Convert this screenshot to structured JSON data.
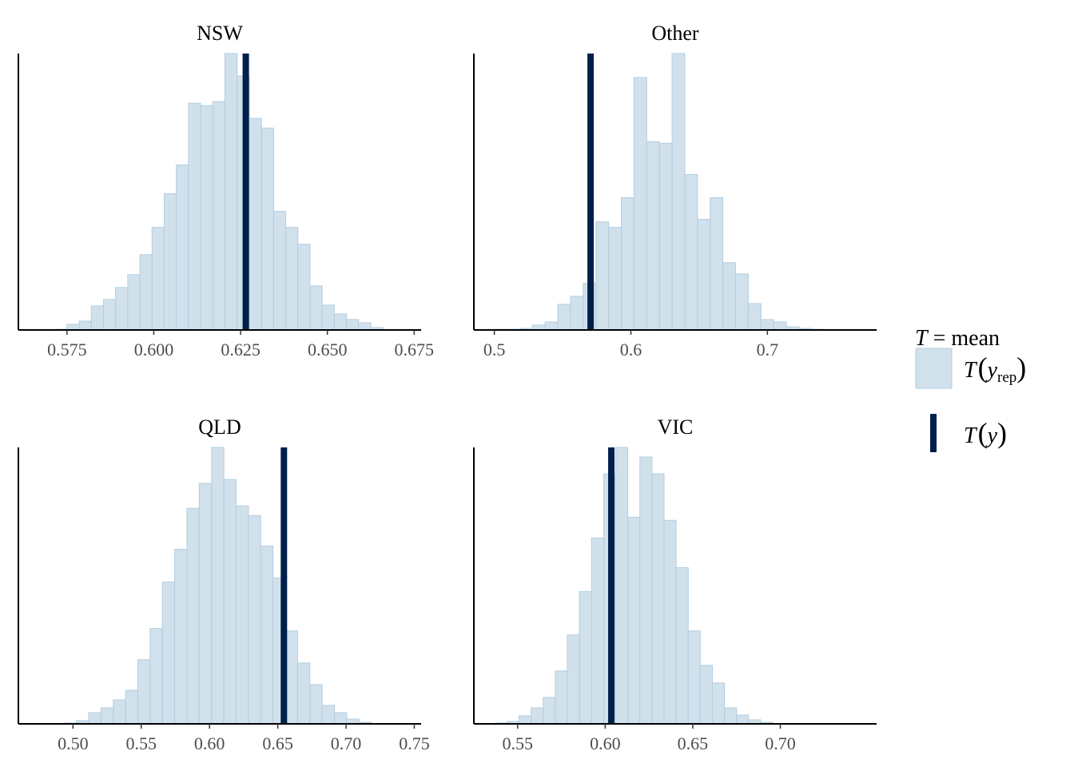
{
  "colors": {
    "bar_fill": "#d1e1ec",
    "bar_stroke": "#b3cde0",
    "observed": "#011f4b"
  },
  "legend": {
    "stat_symbol": "T",
    "stat_eq": " = mean",
    "rep_label_main": "T",
    "rep_label_sub": "rep",
    "rep_label_var": "y",
    "obs_label_main": "T",
    "obs_label_var": "y"
  },
  "chart_data": [
    {
      "type": "bar",
      "title": "NSW",
      "xlim": [
        0.561,
        0.677
      ],
      "ticks": [
        "0.575",
        "0.600",
        "0.625",
        "0.650",
        "0.675"
      ],
      "tick_values": [
        0.575,
        0.6,
        0.625,
        0.65,
        0.675
      ],
      "bin_start": 0.5715,
      "bin_width": 0.0035,
      "counts": [
        1,
        7,
        11,
        30,
        38,
        53,
        69,
        94,
        128,
        170,
        206,
        283,
        280,
        285,
        345,
        317,
        264,
        252,
        148,
        128,
        107,
        55,
        31,
        20,
        13,
        9,
        3
      ],
      "observed": 0.6265
    },
    {
      "type": "bar",
      "title": "Other",
      "xlim": [
        0.485,
        0.78
      ],
      "ticks": [
        "0.5",
        "0.6",
        "0.7"
      ],
      "tick_values": [
        0.5,
        0.6,
        0.7
      ],
      "bin_start": 0.5,
      "bin_width": 0.0093,
      "counts": [
        1,
        1,
        2,
        6,
        10,
        32,
        42,
        58,
        135,
        128,
        165,
        315,
        235,
        233,
        345,
        194,
        138,
        165,
        84,
        70,
        33,
        13,
        10,
        4,
        2,
        1
      ],
      "observed": 0.5705
    },
    {
      "type": "bar",
      "title": "QLD",
      "xlim": [
        0.46,
        0.755
      ],
      "ticks": [
        "0.50",
        "0.55",
        "0.60",
        "0.65",
        "0.70",
        "0.75"
      ],
      "tick_values": [
        0.5,
        0.55,
        0.6,
        0.65,
        0.7,
        0.75
      ],
      "bin_start": 0.4935,
      "bin_width": 0.009,
      "counts": [
        1,
        4,
        14,
        20,
        30,
        42,
        80,
        119,
        177,
        218,
        269,
        300,
        345,
        305,
        272,
        260,
        222,
        182,
        116,
        76,
        49,
        23,
        14,
        6,
        2
      ],
      "observed": 0.6545
    },
    {
      "type": "bar",
      "title": "VIC",
      "xlim": [
        0.525,
        0.755
      ],
      "ticks": [
        "0.55",
        "0.60",
        "0.65",
        "0.70"
      ],
      "tick_values": [
        0.55,
        0.6,
        0.65,
        0.7
      ],
      "bin_start": 0.537,
      "bin_width": 0.0069,
      "counts": [
        1,
        3,
        10,
        20,
        33,
        66,
        111,
        165,
        232,
        312,
        345,
        258,
        333,
        312,
        254,
        195,
        116,
        73,
        51,
        20,
        11,
        5,
        2
      ],
      "observed": 0.6035
    }
  ]
}
